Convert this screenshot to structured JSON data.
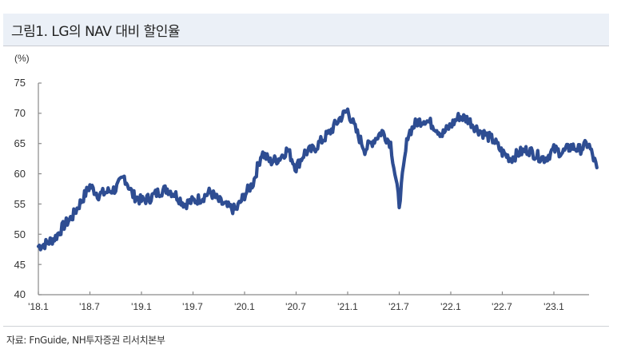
{
  "header": {
    "title": "그림1. LG의 NAV 대비 할인율"
  },
  "footer": {
    "source": "자료: FnGuide, NH투자증권 리서치본부"
  },
  "colors": {
    "line": "#2e4d92",
    "header_bg": "#ebf0f7",
    "axis": "#888888"
  },
  "chart_data": {
    "type": "line",
    "title": "그림1. LG의 NAV 대비 할인율",
    "xlabel": "",
    "ylabel": "(%)",
    "ylim": [
      40,
      75
    ],
    "yticks": [
      40,
      45,
      50,
      55,
      60,
      65,
      70,
      75
    ],
    "xticks": [
      "'18.1",
      "'18.7",
      "'19.1",
      "'19.7",
      "'20.1",
      "'20.7",
      "'21.1",
      "'21.7",
      "'22.1",
      "'22.7",
      "'23.1"
    ],
    "grid": false,
    "legend": null,
    "series": [
      {
        "name": "LG NAV 대비 할인율",
        "x": [
          "2018-01",
          "2018-02",
          "2018-03",
          "2018-04",
          "2018-05",
          "2018-06",
          "2018-07",
          "2018-08",
          "2018-09",
          "2018-10",
          "2018-11",
          "2018-12",
          "2019-01",
          "2019-02",
          "2019-03",
          "2019-04",
          "2019-05",
          "2019-06",
          "2019-07",
          "2019-08",
          "2019-09",
          "2019-10",
          "2019-11",
          "2019-12",
          "2020-01",
          "2020-02",
          "2020-03",
          "2020-04",
          "2020-05",
          "2020-06",
          "2020-07",
          "2020-08",
          "2020-09",
          "2020-10",
          "2020-11",
          "2020-12",
          "2021-01",
          "2021-02",
          "2021-03",
          "2021-04",
          "2021-05",
          "2021-06",
          "2021-07",
          "2021-08",
          "2021-09",
          "2021-10",
          "2021-11",
          "2021-12",
          "2022-01",
          "2022-02",
          "2022-03",
          "2022-04",
          "2022-05",
          "2022-06",
          "2022-07",
          "2022-08",
          "2022-09",
          "2022-10",
          "2022-11",
          "2022-12",
          "2023-01",
          "2023-02",
          "2023-03",
          "2023-04",
          "2023-05",
          "2023-06"
        ],
        "values": [
          48.0,
          48.5,
          49.5,
          51.5,
          53.0,
          55.5,
          58.0,
          56.5,
          57.0,
          57.5,
          59.5,
          56.5,
          55.5,
          56.0,
          57.0,
          57.5,
          56.5,
          55.0,
          55.5,
          56.0,
          57.0,
          55.5,
          54.5,
          54.0,
          56.5,
          58.5,
          63.5,
          62.0,
          62.5,
          64.0,
          61.0,
          63.5,
          64.0,
          65.5,
          67.0,
          69.0,
          70.5,
          67.0,
          64.0,
          65.5,
          67.0,
          65.0,
          55.0,
          66.5,
          68.5,
          69.0,
          68.0,
          66.5,
          68.0,
          69.5,
          69.0,
          67.5,
          66.5,
          65.5,
          63.5,
          62.5,
          63.5,
          64.0,
          63.0,
          62.5,
          64.0,
          63.5,
          64.5,
          64.0,
          65.0,
          61.0
        ]
      }
    ]
  },
  "axis": {
    "y_labels": [
      "75",
      "70",
      "65",
      "60",
      "55",
      "50",
      "45",
      "40"
    ],
    "x_labels": [
      "'18.1",
      "'18.7",
      "'19.1",
      "'19.7",
      "'20.1",
      "'20.7",
      "'21.1",
      "'21.7",
      "'22.1",
      "'22.7",
      "'23.1"
    ],
    "unit": "(%)"
  }
}
